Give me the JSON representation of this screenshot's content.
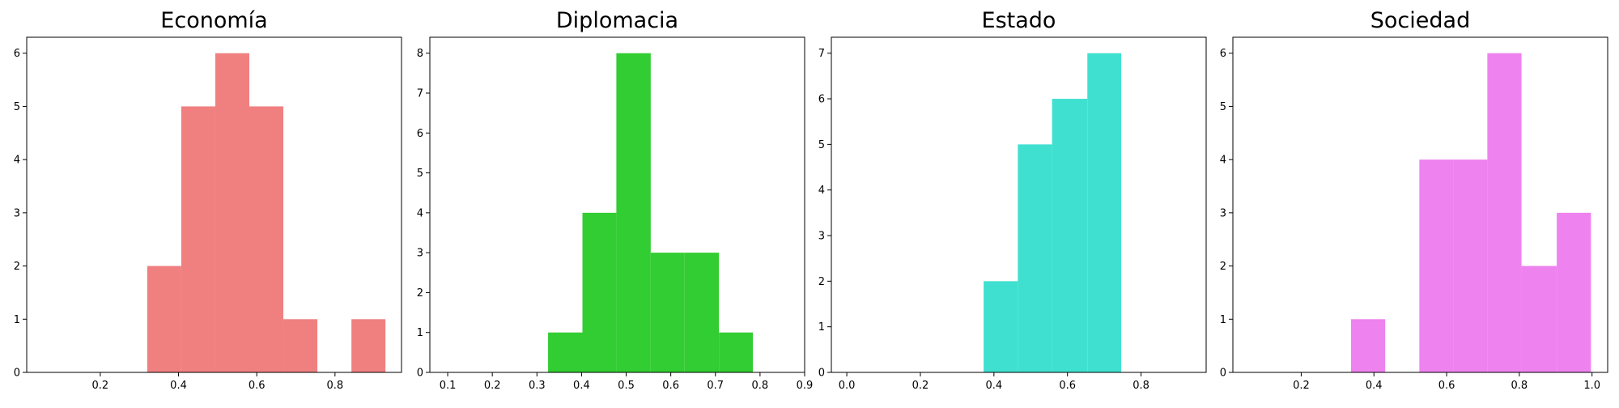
{
  "chart_data": [
    {
      "type": "histogram",
      "title": "Economía",
      "color": "#f08080",
      "bins": [
        0.32,
        0.407,
        0.494,
        0.581,
        0.668,
        0.755,
        0.842,
        0.929
      ],
      "values": [
        2,
        5,
        6,
        5,
        1,
        0,
        1
      ],
      "xlim": [
        0.012,
        0.97
      ],
      "ylim": [
        0,
        6.3
      ],
      "xticks": [
        0.2,
        0.4,
        0.6,
        0.8
      ],
      "yticks": [
        0,
        1,
        2,
        3,
        4,
        5,
        6
      ]
    },
    {
      "type": "histogram",
      "title": "Diplomacia",
      "color": "#32cd32",
      "bins": [
        0.325,
        0.402,
        0.478,
        0.555,
        0.631,
        0.708,
        0.784
      ],
      "values": [
        1,
        4,
        8,
        3,
        3,
        1
      ],
      "xlim": [
        0.06,
        0.9
      ],
      "ylim": [
        0,
        8.4
      ],
      "xticks": [
        0.1,
        0.2,
        0.3,
        0.4,
        0.5,
        0.6,
        0.7,
        0.8,
        0.9
      ],
      "yticks": [
        0,
        1,
        2,
        3,
        4,
        5,
        6,
        7,
        8
      ]
    },
    {
      "type": "histogram",
      "title": "Estado",
      "color": "#40e0d0",
      "bins": [
        0.372,
        0.465,
        0.558,
        0.654,
        0.746
      ],
      "values": [
        2,
        5,
        6,
        7
      ],
      "xlim": [
        -0.042,
        0.977
      ],
      "ylim": [
        0,
        7.35
      ],
      "xticks": [
        {
          "value": 0,
          "label": "0.0"
        },
        0.2,
        0.4,
        0.6,
        0.8
      ],
      "yticks": [
        0,
        1,
        2,
        3,
        4,
        5,
        6,
        7
      ]
    },
    {
      "type": "histogram",
      "title": "Sociedad",
      "color": "#ee82ee",
      "bins": [
        0.337,
        0.431,
        0.525,
        0.619,
        0.712,
        0.806,
        0.903,
        0.997
      ],
      "values": [
        1,
        0,
        4,
        4,
        6,
        2,
        3
      ],
      "xlim": [
        0.012,
        1.043
      ],
      "ylim": [
        0,
        6.3
      ],
      "xticks": [
        0.2,
        0.4,
        0.6,
        0.8,
        {
          "value": 1,
          "label": "1.0"
        }
      ],
      "yticks": [
        0,
        1,
        2,
        3,
        4,
        5,
        6
      ]
    }
  ]
}
